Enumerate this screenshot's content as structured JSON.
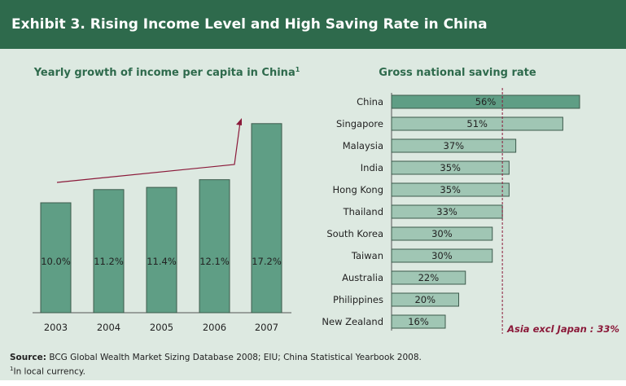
{
  "header": {
    "title": "Exhibit 3. Rising Income Level and High Saving Rate in China"
  },
  "chart_data": [
    {
      "type": "bar",
      "title": "Yearly growth of income per capita in China",
      "title_superscript": "1",
      "categories": [
        "2003",
        "2004",
        "2005",
        "2006",
        "2007"
      ],
      "values": [
        10.0,
        11.2,
        11.4,
        12.1,
        17.2
      ],
      "data_labels": [
        "10.0%",
        "11.2%",
        "11.4%",
        "12.1%",
        "17.2%"
      ],
      "annotation": "trend arrow rising",
      "colors": {
        "bar": "#5f9e85",
        "arrow": "#8b1a3a"
      },
      "grid": false
    },
    {
      "type": "bar",
      "orientation": "horizontal",
      "title": "Gross national saving rate",
      "categories": [
        "China",
        "Singapore",
        "Malaysia",
        "India",
        "Hong Kong",
        "Thailand",
        "South Korea",
        "Taiwan",
        "Australia",
        "Philippines",
        "New Zealand"
      ],
      "values": [
        56,
        51,
        37,
        35,
        35,
        33,
        30,
        30,
        22,
        20,
        16
      ],
      "data_labels": [
        "56%",
        "51%",
        "37%",
        "35%",
        "35%",
        "33%",
        "30%",
        "30%",
        "22%",
        "20%",
        "16%"
      ],
      "reference_line": {
        "value": 33,
        "label": "Asia excl Japan : 33%"
      },
      "colors": {
        "highlight": "#5f9e85",
        "bar": "#a0c6b4",
        "reference": "#8b1a3a"
      },
      "grid": false
    }
  ],
  "footer": {
    "source_label": "Source:",
    "source_text": " BCG Global Wealth Market Sizing Database 2008; EIU; China Statistical Yearbook 2008.",
    "note_marker": "1",
    "note_text": "In local currency."
  }
}
